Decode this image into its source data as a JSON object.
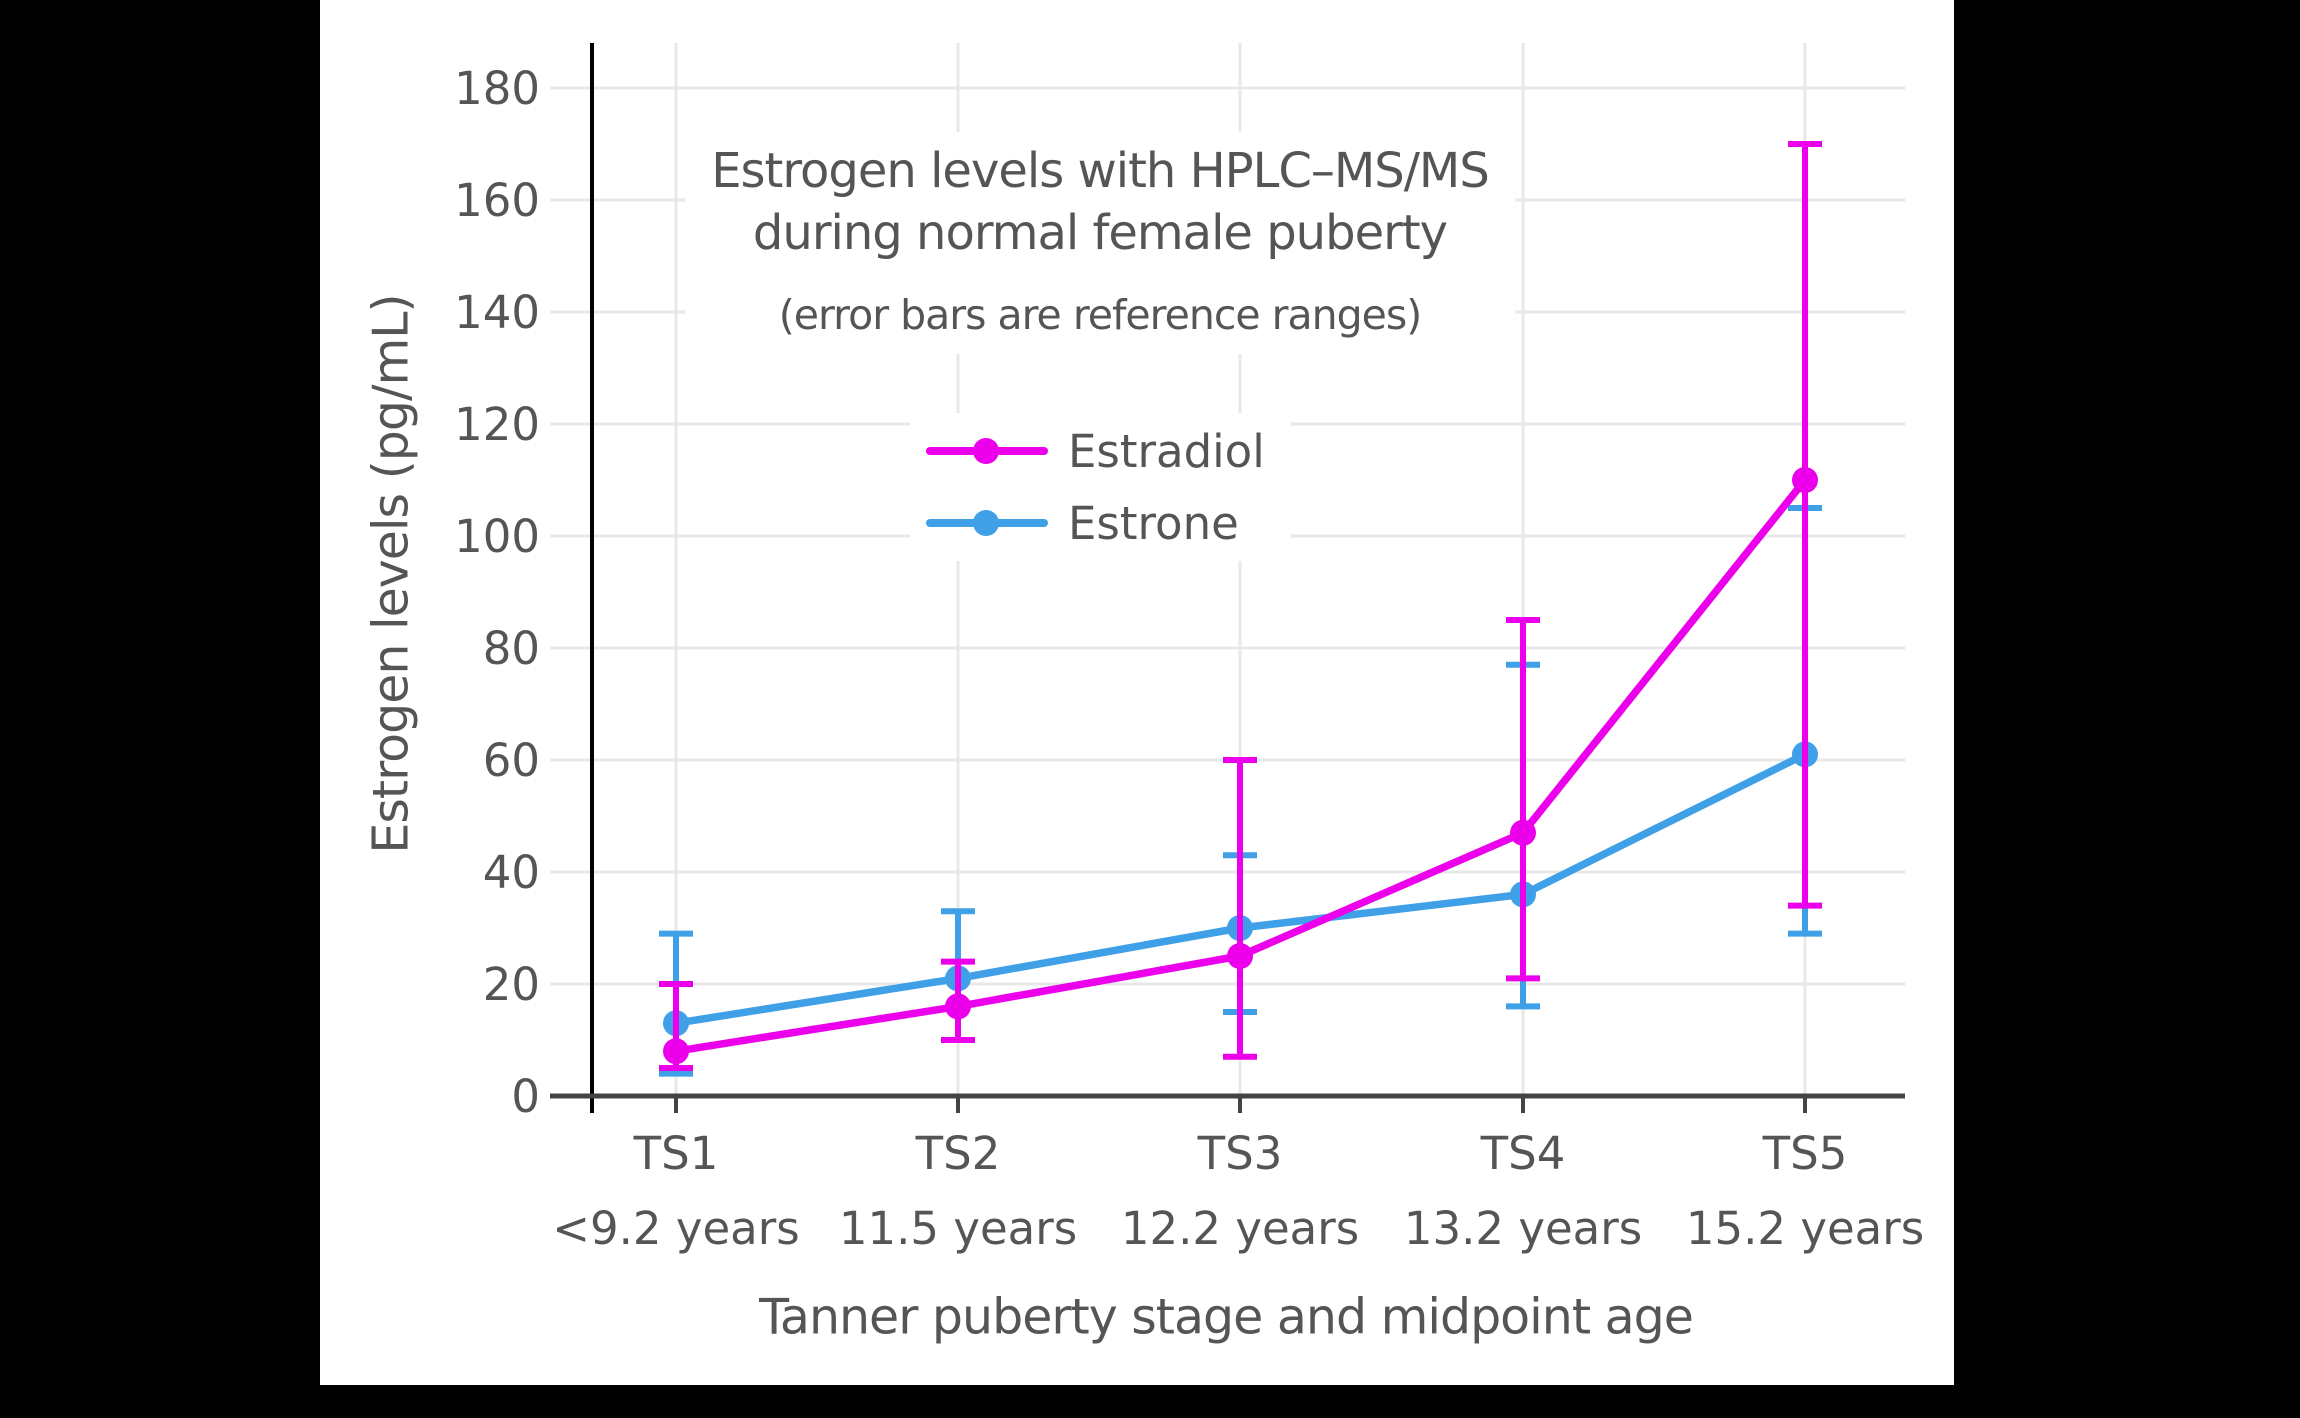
{
  "figure": {
    "title_line1": "Estrogen levels with HPLC–MS/MS",
    "title_line2": "during normal female puberty",
    "title_line3": "(error bars are reference ranges)",
    "y_axis_title": "Estrogen levels (pg/mL)",
    "x_axis_title": "Tanner puberty stage and midpoint age",
    "legend": [
      {
        "label": "Estradiol"
      },
      {
        "label": "Estrone"
      }
    ]
  },
  "chart_data": {
    "type": "line",
    "title": "Estrogen levels with HPLC–MS/MS during normal female puberty",
    "subtitle": "(error bars are reference ranges)",
    "xlabel": "Tanner puberty stage and midpoint age",
    "ylabel": "Estrogen levels (pg/mL)",
    "categories": [
      "TS1",
      "TS2",
      "TS3",
      "TS4",
      "TS5"
    ],
    "category_sublabels": [
      "<9.2 years",
      "11.5 years",
      "12.2 years",
      "13.2 years",
      "15.2 years"
    ],
    "y_ticks": [
      0,
      20,
      40,
      60,
      80,
      100,
      120,
      140,
      160,
      180
    ],
    "ylim": [
      0,
      188
    ],
    "grid": true,
    "legend_position": "inside-upper-left",
    "error_bars": "reference ranges",
    "series": [
      {
        "name": "Estradiol",
        "color": "#EC00EC",
        "values": [
          8,
          16,
          25,
          47,
          110
        ],
        "range_low": [
          5,
          10,
          7,
          21,
          34
        ],
        "range_high": [
          20,
          24,
          60,
          85,
          170
        ]
      },
      {
        "name": "Estrone",
        "color": "#3FA0E8",
        "values": [
          13,
          21,
          30,
          36,
          61
        ],
        "range_low": [
          4,
          10,
          15,
          16,
          29
        ],
        "range_high": [
          29,
          33,
          43,
          77,
          105
        ]
      }
    ]
  },
  "colors": {
    "background": "#000000",
    "figure_background": "#ffffff",
    "text": "#555555",
    "gridline": "#e8e8e8",
    "y_axis_line": "#000000",
    "x_axis_line": "#444444",
    "estradiol": "#EC00EC",
    "estrone": "#3FA0E8"
  }
}
